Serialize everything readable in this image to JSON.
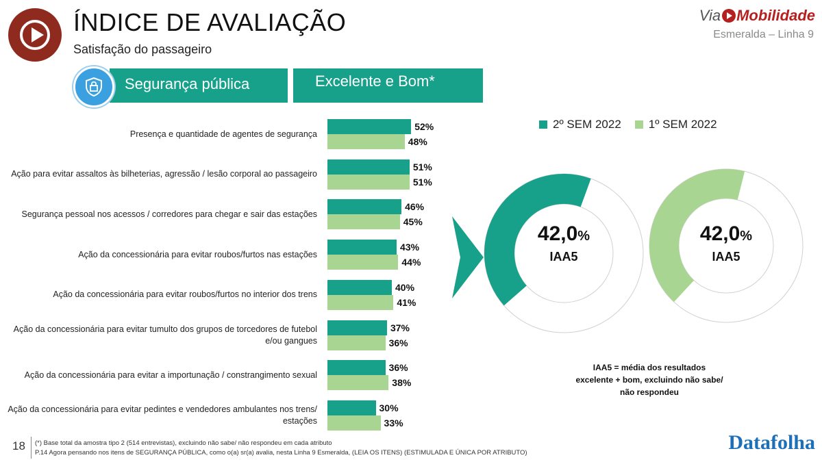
{
  "header": {
    "title": "ÍNDICE DE AVALIAÇÃO",
    "subtitle": "Satisfação do passageiro",
    "brand_via": "Via",
    "brand_name": "Mobilidade",
    "line_label": "Esmeralda – Linha 9"
  },
  "category": {
    "label": "Segurança pública",
    "icon": "security-shield-icon",
    "metric": "Excelente e Bom*"
  },
  "colors": {
    "sem2_2022": "#17a08a",
    "sem1_2022": "#a8d692",
    "accent_dark": "#8f2a1f",
    "datafolha_blue": "#1c6fb8"
  },
  "chart_data": [
    {
      "type": "bar",
      "orientation": "horizontal",
      "categories": [
        "Presença e quantidade de agentes de segurança",
        "Ação para evitar assaltos às bilheterias, agressão / lesão corporal ao passageiro",
        "Segurança pessoal nos acessos / corredores para chegar e sair das estações",
        "Ação da concessionária para evitar roubos/furtos nas estações",
        "Ação da concessionária para evitar roubos/furtos no interior dos trens",
        "Ação da concessionária para evitar tumulto dos grupos de torcedores de futebol e/ou gangues",
        "Ação da concessionária para evitar a importunação / constrangimento sexual",
        "Ação da concessionária para evitar pedintes e vendedores ambulantes nos trens/ estações"
      ],
      "series": [
        {
          "name": "2º SEM 2022",
          "values": [
            52,
            51,
            46,
            43,
            40,
            37,
            36,
            30
          ],
          "labels": [
            "52%",
            "51%",
            "46%",
            "43%",
            "40%",
            "37%",
            "36%",
            "30%"
          ]
        },
        {
          "name": "1º SEM 2022",
          "values": [
            48,
            51,
            45,
            44,
            41,
            36,
            38,
            33
          ],
          "labels": [
            "48%",
            "51%",
            "45%",
            "44%",
            "41%",
            "36%",
            "38%",
            "33%"
          ]
        }
      ],
      "xlim": [
        0,
        100
      ],
      "legend": "top"
    },
    {
      "type": "pie",
      "variant": "donut",
      "series_name": "2º SEM 2022",
      "value": 42.0,
      "value_text": "42,0",
      "unit": "%",
      "label": "IAA5"
    },
    {
      "type": "pie",
      "variant": "donut",
      "series_name": "1º SEM 2022",
      "value": 42.0,
      "value_text": "42,0",
      "unit": "%",
      "label": "IAA5"
    }
  ],
  "legend": {
    "s2": "2º SEM 2022",
    "s1": "1º SEM 2022"
  },
  "note": "IAA5 = média dos resultados excelente + bom, excluindo não sabe/ não respondeu",
  "footer": {
    "page": "18",
    "line1": "(*) Base total da amostra tipo 2 (514 entrevistas), excluindo não sabe/ não respondeu em cada atributo",
    "line2": "P.14 Agora pensando nos itens de SEGURANÇA PÚBLICA, como o(a) sr(a) avalia, nesta Linha 9 Esmeralda, (LEIA OS ITENS) (ESTIMULADA E ÚNICA POR ATRIBUTO)",
    "source": "Datafolha"
  }
}
